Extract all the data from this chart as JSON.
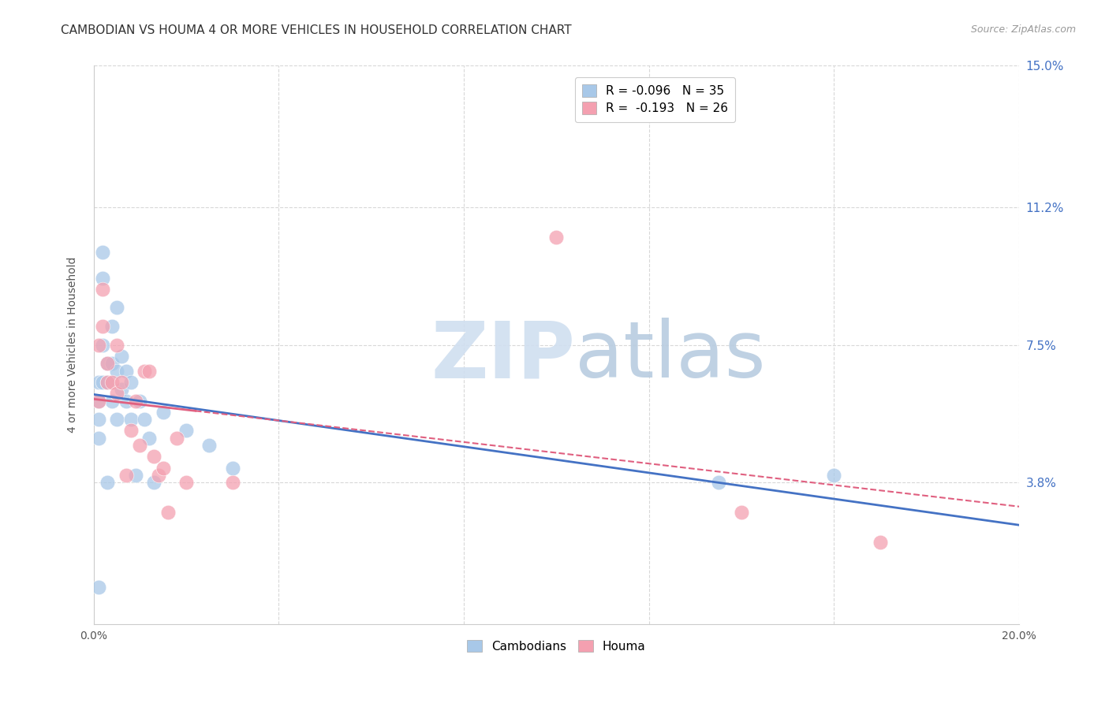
{
  "title": "CAMBODIAN VS HOUMA 4 OR MORE VEHICLES IN HOUSEHOLD CORRELATION CHART",
  "source": "Source: ZipAtlas.com",
  "ylabel": "4 or more Vehicles in Household",
  "xlim": [
    0.0,
    0.2
  ],
  "ylim": [
    0.0,
    0.15
  ],
  "xtick_pos": [
    0.0,
    0.04,
    0.08,
    0.12,
    0.16,
    0.2
  ],
  "xtick_labels": [
    "0.0%",
    "",
    "",
    "",
    "",
    "20.0%"
  ],
  "ytick_labels_right": [
    "15.0%",
    "11.2%",
    "7.5%",
    "3.8%"
  ],
  "ytick_positions_right": [
    0.15,
    0.112,
    0.075,
    0.038
  ],
  "watermark_zip": "ZIP",
  "watermark_atlas": "atlas",
  "cambodian_r": "-0.096",
  "cambodian_n": "35",
  "houma_r": "-0.193",
  "houma_n": "26",
  "cambodian_color": "#a8c8e8",
  "houma_color": "#f4a0b0",
  "trendline_cambodian_color": "#4472c4",
  "trendline_houma_color": "#e06080",
  "background_color": "#ffffff",
  "grid_color": "#d8d8d8",
  "cambodians_x": [
    0.001,
    0.001,
    0.001,
    0.001,
    0.002,
    0.002,
    0.002,
    0.002,
    0.003,
    0.003,
    0.003,
    0.004,
    0.004,
    0.004,
    0.005,
    0.005,
    0.005,
    0.006,
    0.006,
    0.007,
    0.007,
    0.008,
    0.008,
    0.009,
    0.01,
    0.011,
    0.012,
    0.013,
    0.015,
    0.02,
    0.025,
    0.03,
    0.135,
    0.16,
    0.001
  ],
  "cambodians_y": [
    0.065,
    0.06,
    0.055,
    0.05,
    0.1,
    0.093,
    0.075,
    0.065,
    0.07,
    0.065,
    0.038,
    0.08,
    0.07,
    0.06,
    0.085,
    0.068,
    0.055,
    0.072,
    0.063,
    0.068,
    0.06,
    0.065,
    0.055,
    0.04,
    0.06,
    0.055,
    0.05,
    0.038,
    0.057,
    0.052,
    0.048,
    0.042,
    0.038,
    0.04,
    0.01
  ],
  "houma_x": [
    0.001,
    0.001,
    0.002,
    0.002,
    0.003,
    0.003,
    0.004,
    0.005,
    0.005,
    0.006,
    0.007,
    0.008,
    0.009,
    0.01,
    0.011,
    0.012,
    0.013,
    0.014,
    0.015,
    0.016,
    0.018,
    0.02,
    0.03,
    0.1,
    0.14,
    0.17
  ],
  "houma_y": [
    0.075,
    0.06,
    0.09,
    0.08,
    0.07,
    0.065,
    0.065,
    0.075,
    0.062,
    0.065,
    0.04,
    0.052,
    0.06,
    0.048,
    0.068,
    0.068,
    0.045,
    0.04,
    0.042,
    0.03,
    0.05,
    0.038,
    0.038,
    0.104,
    0.03,
    0.022
  ],
  "title_fontsize": 11,
  "axis_label_fontsize": 10,
  "tick_fontsize": 10,
  "legend_fontsize": 11,
  "source_fontsize": 9
}
